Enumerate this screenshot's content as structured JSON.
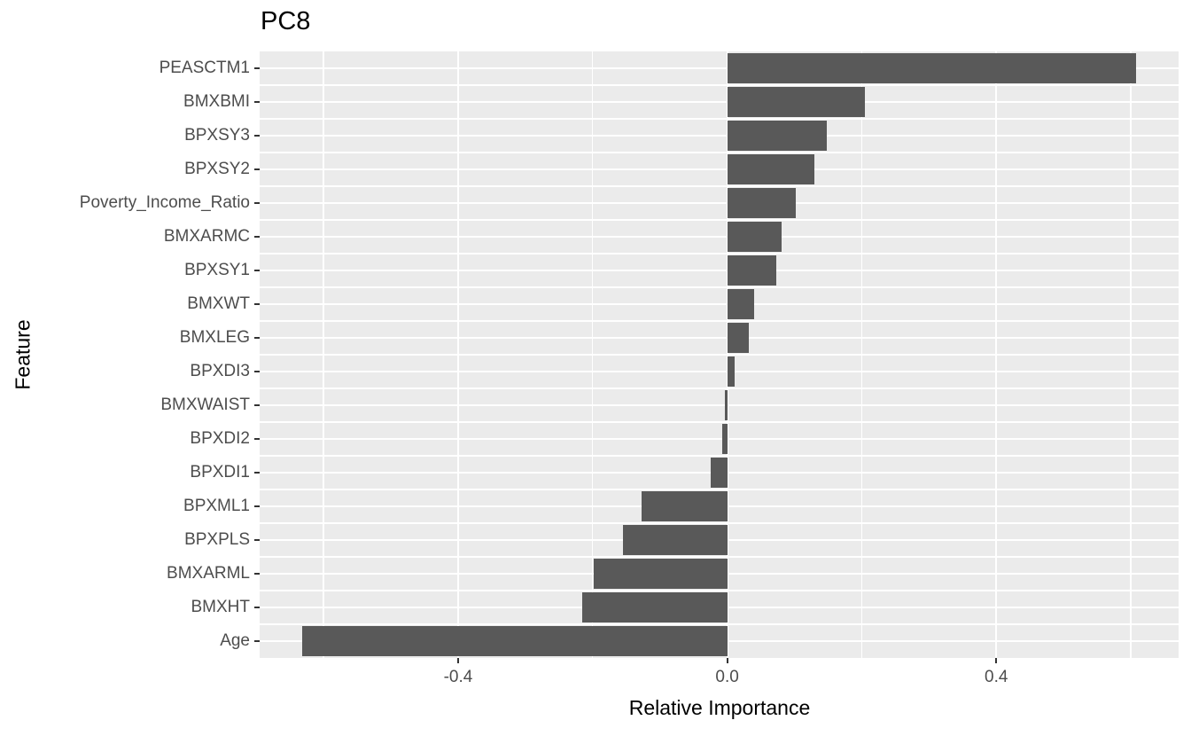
{
  "title": "PC8",
  "axes": {
    "x_title": "Relative Importance",
    "y_title": "Feature"
  },
  "chart_data": {
    "type": "bar",
    "orientation": "horizontal",
    "title": "PC8",
    "xlabel": "Relative Importance",
    "ylabel": "Feature",
    "categories": [
      "PEASCTM1",
      "BMXBMI",
      "BPXSY3",
      "BPXSY2",
      "Poverty_Income_Ratio",
      "BMXARMC",
      "BPXSY1",
      "BMXWT",
      "BMXLEG",
      "BPXDI3",
      "BMXWAIST",
      "BPXDI2",
      "BPXDI1",
      "BPXML1",
      "BPXPLS",
      "BMXARML",
      "BMXHT",
      "Age"
    ],
    "values": [
      0.608,
      0.205,
      0.148,
      0.13,
      0.102,
      0.081,
      0.073,
      0.04,
      0.032,
      0.011,
      -0.004,
      -0.007,
      -0.025,
      -0.127,
      -0.155,
      -0.199,
      -0.215,
      -0.632
    ],
    "xlim": [
      -0.695,
      0.671
    ],
    "x_major_ticks": [
      -0.4,
      0.0,
      0.4
    ],
    "x_tick_labels": [
      "-0.4",
      "0.0",
      "0.4"
    ],
    "x_minor_gridlines": [
      -0.6,
      -0.2,
      0.2,
      0.6
    ],
    "legend": "none",
    "grid": "on",
    "bar_color": "#595959",
    "panel_bg": "#EBEBEB",
    "grid_color": "#FFFFFF",
    "tick_label_color": "#4D4D4D",
    "tick_mark_color": "#333333"
  }
}
